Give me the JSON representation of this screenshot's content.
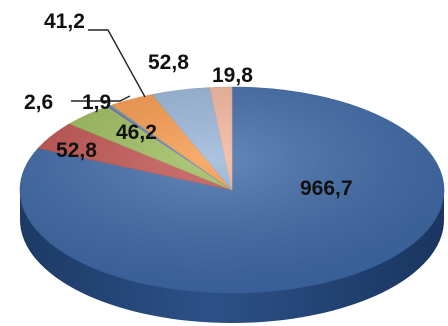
{
  "chart_data": {
    "type": "pie",
    "values": [
      966.7,
      52.8,
      46.2,
      2.6,
      1.9,
      41.2,
      52.8,
      19.8
    ],
    "labels": [
      "966,7",
      "52,8",
      "46,2",
      "2,6",
      "1,9",
      "41,2",
      "52,8",
      "19,8"
    ],
    "colors": [
      "#3b67a6",
      "#c0504d",
      "#9bbb59",
      "#8064a2",
      "#4bacc6",
      "#f79646",
      "#95b3d7",
      "#f2b49a"
    ],
    "style": "3d",
    "legend": "none",
    "title": ""
  }
}
